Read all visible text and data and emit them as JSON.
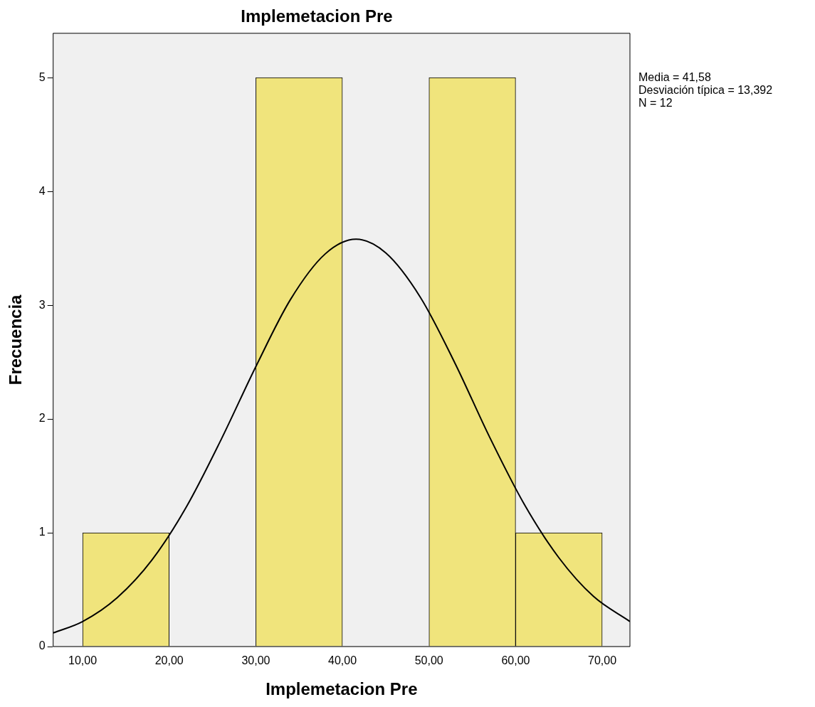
{
  "chart_data": {
    "type": "histogram",
    "title": "Implemetacion Pre",
    "xlabel": "Implemetacion Pre",
    "ylabel": "Frecuencia",
    "bins": [
      10,
      20,
      30,
      40,
      50,
      60,
      70
    ],
    "values": [
      1,
      0,
      5,
      0,
      5,
      1
    ],
    "color": "#f0e47c",
    "series": [
      {
        "type": "line",
        "color": "#000000",
        "x": [
          6.6,
          10,
          14,
          18,
          22,
          26,
          30,
          34,
          38,
          41.58,
          45,
          49,
          53,
          57,
          61,
          65,
          69,
          73.2
        ],
        "values": [
          0.12,
          0.22,
          0.43,
          0.76,
          1.23,
          1.82,
          2.46,
          3.05,
          3.45,
          3.58,
          3.46,
          3.07,
          2.49,
          1.84,
          1.25,
          0.78,
          0.44,
          0.22
        ]
      }
    ],
    "xlim": [
      6.6,
      73.2
    ],
    "xticks": [
      {
        "value": 10,
        "label": "10,00"
      },
      {
        "value": 20,
        "label": "20,00"
      },
      {
        "value": 30,
        "label": "30,00"
      },
      {
        "value": 40,
        "label": "40,00"
      },
      {
        "value": 50,
        "label": "50,00"
      },
      {
        "value": 60,
        "label": "60,00"
      },
      {
        "value": 70,
        "label": "70,00"
      }
    ],
    "ylim": [
      0,
      5.39
    ],
    "yticks": [
      0,
      1,
      2,
      3,
      4,
      5
    ],
    "grid": false,
    "legend": false,
    "annotations": [
      "Media = 41,58",
      "Desviación típica = 13,392",
      "N = 12"
    ]
  }
}
